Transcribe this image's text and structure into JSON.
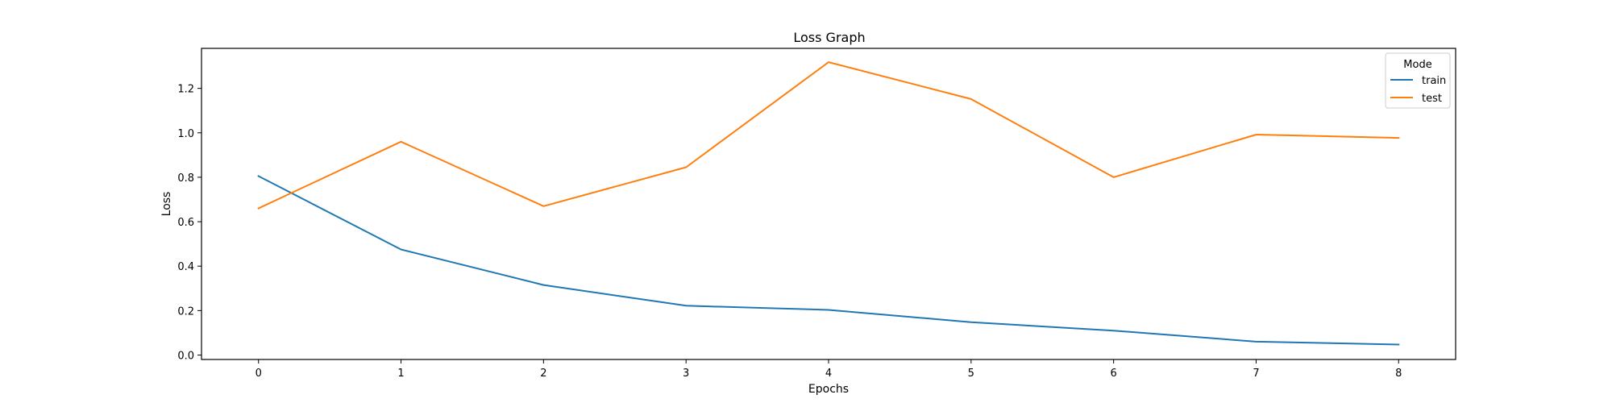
{
  "chart_data": {
    "type": "line",
    "title": "Loss Graph",
    "xlabel": "Epochs",
    "ylabel": "Loss",
    "x": [
      0,
      1,
      2,
      3,
      4,
      5,
      6,
      7,
      8
    ],
    "xlim": [
      -0.4,
      8.4
    ],
    "ylim": [
      -0.02,
      1.38
    ],
    "x_ticks": [
      "0",
      "1",
      "2",
      "3",
      "4",
      "5",
      "6",
      "7",
      "8"
    ],
    "y_ticks": [
      "0.0",
      "0.2",
      "0.4",
      "0.6",
      "0.8",
      "1.0",
      "1.2"
    ],
    "grid": false,
    "legend": {
      "title": "Mode",
      "placement": "top-right"
    },
    "series": [
      {
        "name": "train",
        "color": "#1f77b4",
        "values": [
          0.805,
          0.475,
          0.315,
          0.222,
          0.203,
          0.148,
          0.11,
          0.06,
          0.047
        ]
      },
      {
        "name": "test",
        "color": "#ff7f0e",
        "values": [
          0.66,
          0.96,
          0.67,
          0.845,
          1.318,
          1.152,
          0.8,
          0.992,
          0.977
        ]
      }
    ]
  }
}
